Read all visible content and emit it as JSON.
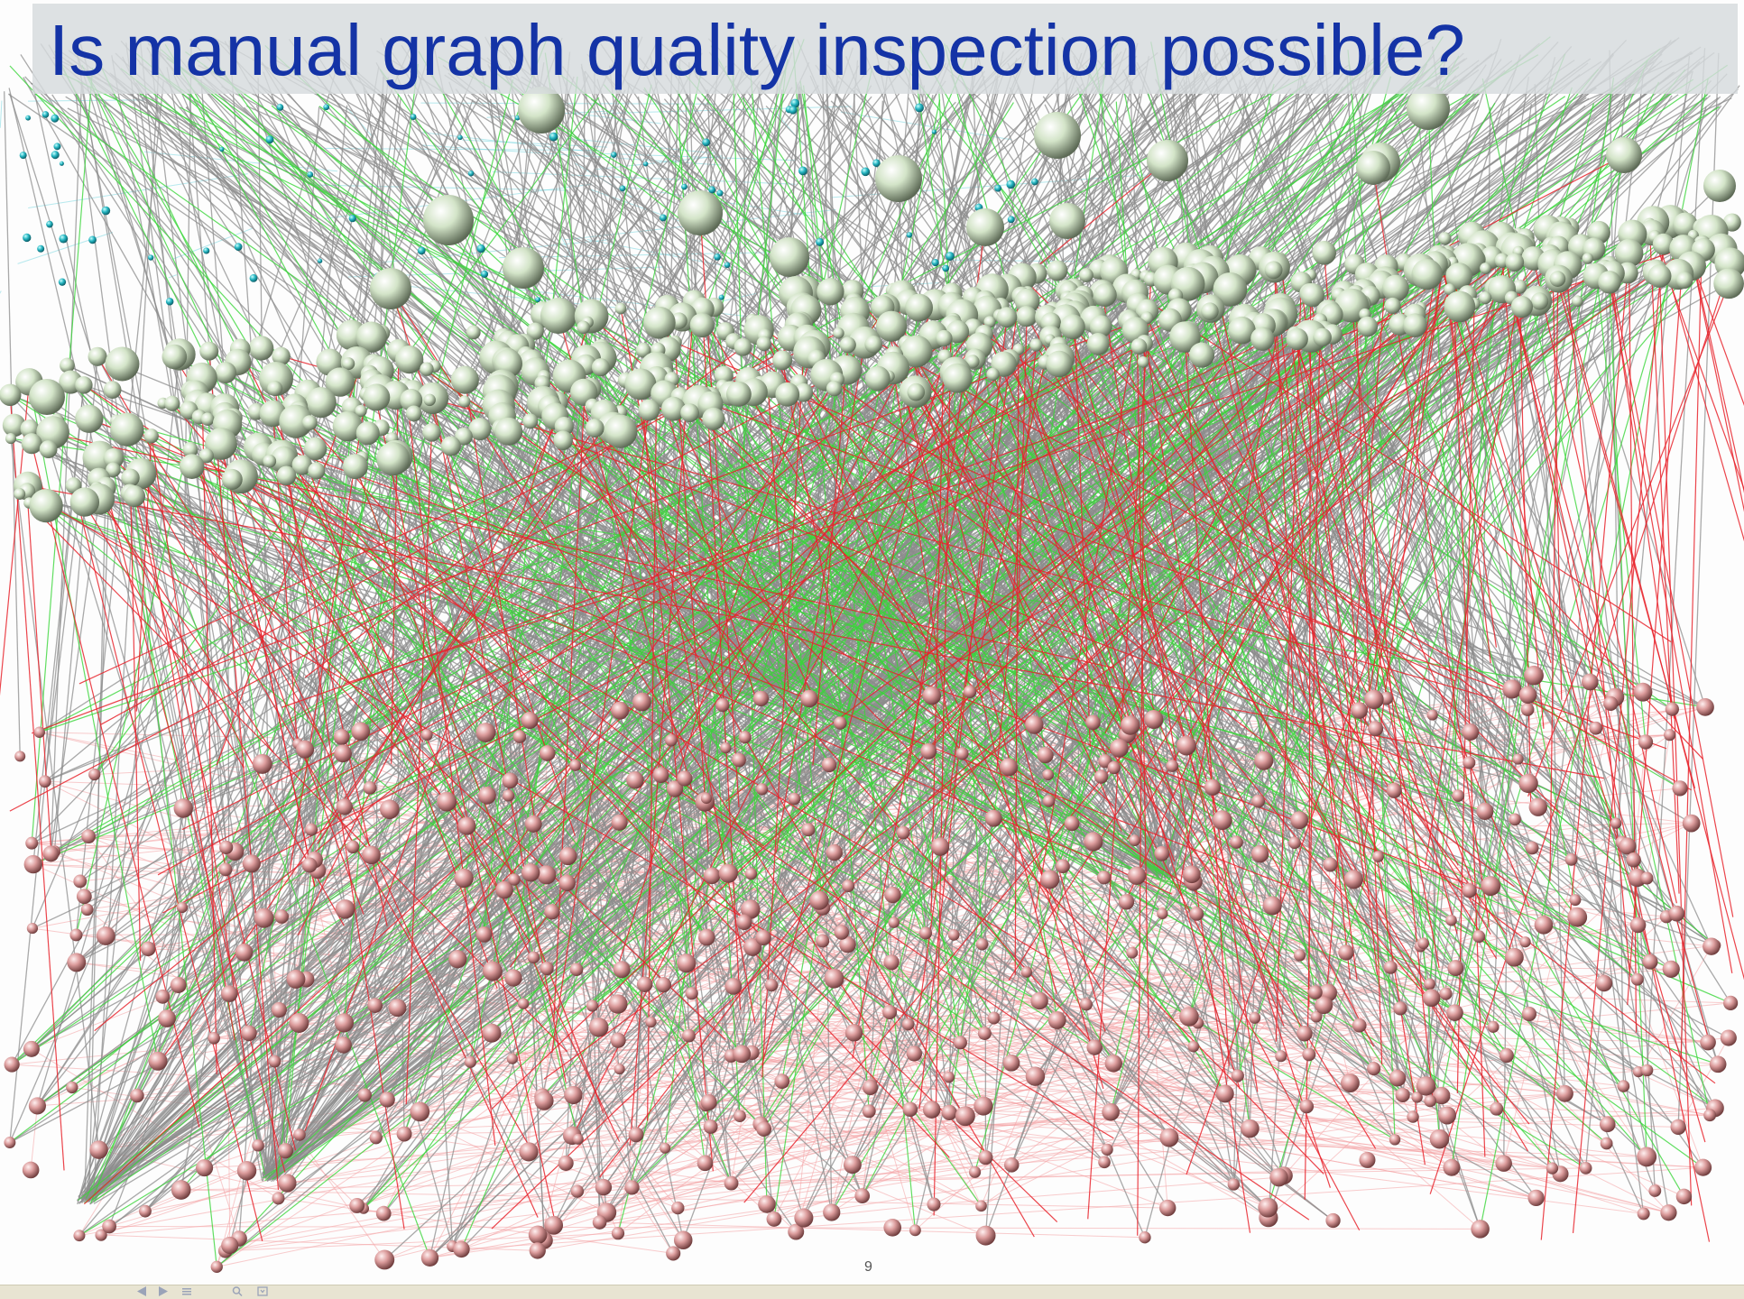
{
  "slide": {
    "title": "Is manual graph quality inspection possible?",
    "page_number": "9"
  },
  "colors": {
    "title_text": "#1433a6",
    "title_band": "#d6dbdd",
    "edge_gray": "#8c8c8c",
    "edge_green": "#3ad63a",
    "edge_red": "#e8232b",
    "edge_pink": "#f4a2a4",
    "edge_cyan": "#6fd6e0",
    "node_green": "#dbe8d2",
    "node_pink": "#e2a0a0",
    "node_cyan": "#26b9c4"
  },
  "icons": {
    "prev": "triangle-left-icon",
    "next": "triangle-right-icon",
    "menu": "list-icon",
    "zoom": "magnifier-icon",
    "fit": "fit-page-icon"
  }
}
